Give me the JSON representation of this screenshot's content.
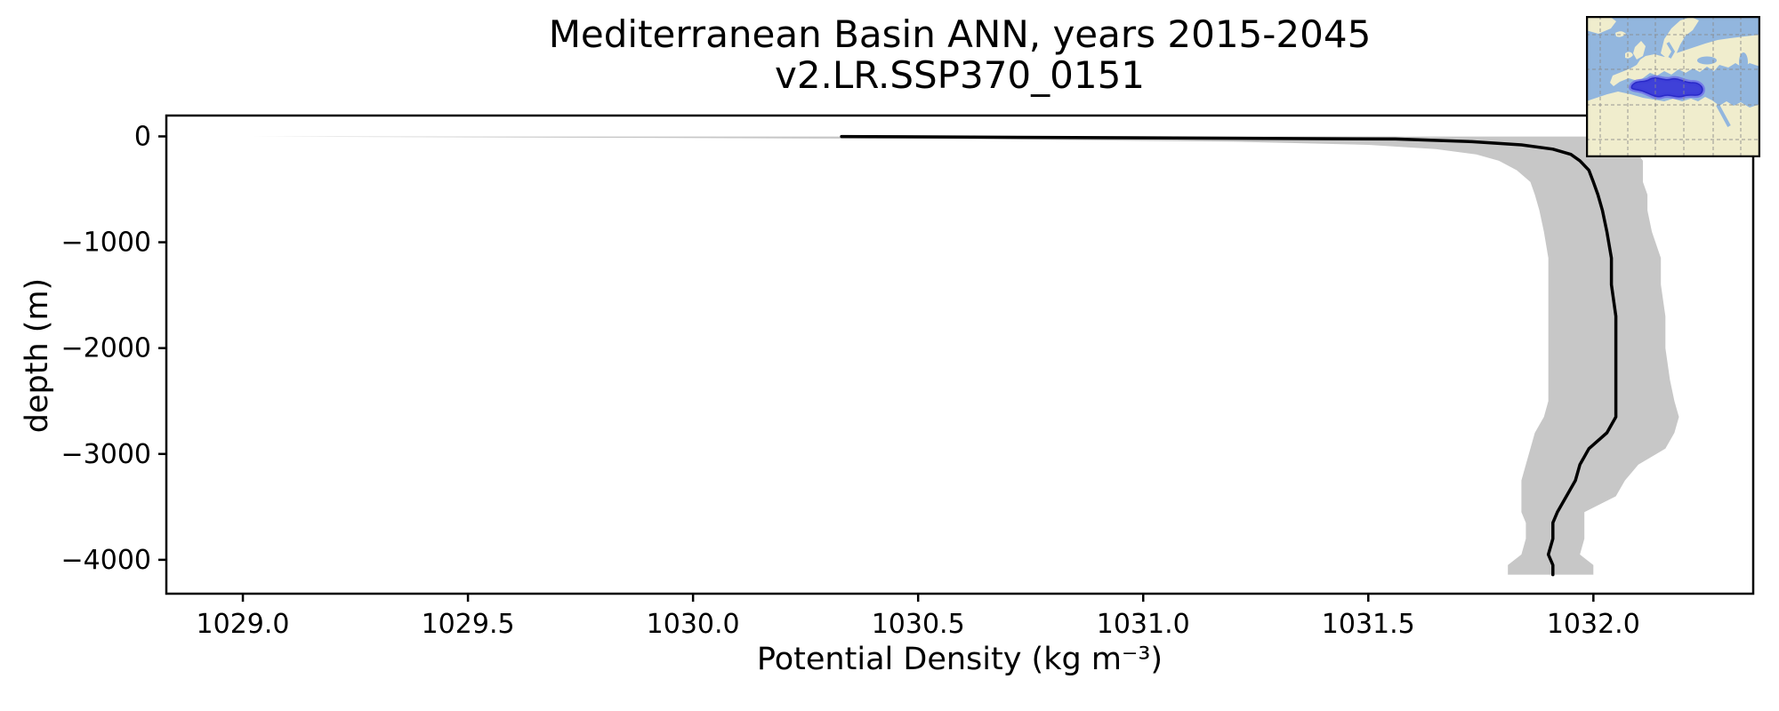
{
  "figure": {
    "title_line1": "Mediterranean Basin ANN, years 2015-2045",
    "title_line2": "v2.LR.SSP370_0151",
    "xlabel": "Potential Density (kg m⁻³)",
    "ylabel": "depth (m)"
  },
  "chart_data": {
    "type": "line",
    "title": "Mediterranean Basin ANN, years 2015-2045",
    "subtitle": "v2.LR.SSP370_0151",
    "xlabel": "Potential Density (kg m⁻³)",
    "ylabel": "depth (m)",
    "xlim": [
      1028.83,
      1032.355
    ],
    "ylim": [
      -4320,
      197
    ],
    "grid": false,
    "legend": "none",
    "x_ticks": {
      "values": [
        1029.0,
        1029.5,
        1030.0,
        1030.5,
        1031.0,
        1031.5,
        1032.0
      ],
      "labels": [
        "1029.0",
        "1029.5",
        "1030.0",
        "1030.5",
        "1031.0",
        "1031.5",
        "1032.0"
      ]
    },
    "y_ticks": {
      "values": [
        0,
        -1000,
        -2000,
        -3000,
        -4000
      ],
      "labels": [
        "0",
        "−1000",
        "−2000",
        "−3000",
        "−4000"
      ]
    },
    "depth_levels_m": [
      -1,
      -25,
      -50,
      -80,
      -120,
      -170,
      -230,
      -320,
      -430,
      -550,
      -700,
      -900,
      -1150,
      -1400,
      -1700,
      -2000,
      -2300,
      -2500,
      -2650,
      -2800,
      -2950,
      -3100,
      -3250,
      -3400,
      -3550,
      -3650,
      -3800,
      -3950,
      -4050,
      -4140
    ],
    "series": [
      {
        "name": "mean potential density profile",
        "role": "line",
        "color": "#000000",
        "x": [
          1030.33,
          1031.56,
          1031.73,
          1031.84,
          1031.91,
          1031.95,
          1031.97,
          1031.99,
          1032.0,
          1032.01,
          1032.02,
          1032.03,
          1032.04,
          1032.04,
          1032.05,
          1032.05,
          1032.05,
          1032.05,
          1032.05,
          1032.03,
          1031.99,
          1031.97,
          1031.96,
          1031.94,
          1031.92,
          1031.91,
          1031.91,
          1031.9,
          1031.91,
          1031.91
        ]
      },
      {
        "name": "min-max spread envelope",
        "role": "band",
        "color": "#c7c7c7",
        "x_min": [
          1029.02,
          1030.6,
          1031.2,
          1031.5,
          1031.65,
          1031.74,
          1031.79,
          1031.83,
          1031.86,
          1031.87,
          1031.88,
          1031.89,
          1031.9,
          1031.9,
          1031.9,
          1031.9,
          1031.9,
          1031.9,
          1031.89,
          1031.87,
          1031.86,
          1031.85,
          1031.84,
          1031.84,
          1031.84,
          1031.85,
          1031.85,
          1031.84,
          1031.81,
          1031.81
        ],
        "x_max": [
          1032.15,
          1032.12,
          1032.11,
          1032.1,
          1032.1,
          1032.1,
          1032.11,
          1032.11,
          1032.11,
          1032.12,
          1032.12,
          1032.13,
          1032.15,
          1032.15,
          1032.16,
          1032.16,
          1032.17,
          1032.18,
          1032.19,
          1032.18,
          1032.16,
          1032.1,
          1032.07,
          1032.05,
          1031.98,
          1031.98,
          1031.98,
          1031.97,
          1032.0,
          1032.0
        ]
      }
    ]
  },
  "inset_map": {
    "description": "Mediterranean Basin region highlighted on Europe/Africa map",
    "ocean_color": "#92b6de",
    "land_color": "#f0edcd",
    "highlight_fill": "#3b3bd8",
    "highlight_halo": "#6d6de8",
    "grid_color": "#8a8a8a",
    "border_color": "#000000"
  },
  "colors": {
    "axis": "#000000",
    "background": "#ffffff",
    "mean_line": "#000000",
    "envelope": "#c7c7c7"
  }
}
